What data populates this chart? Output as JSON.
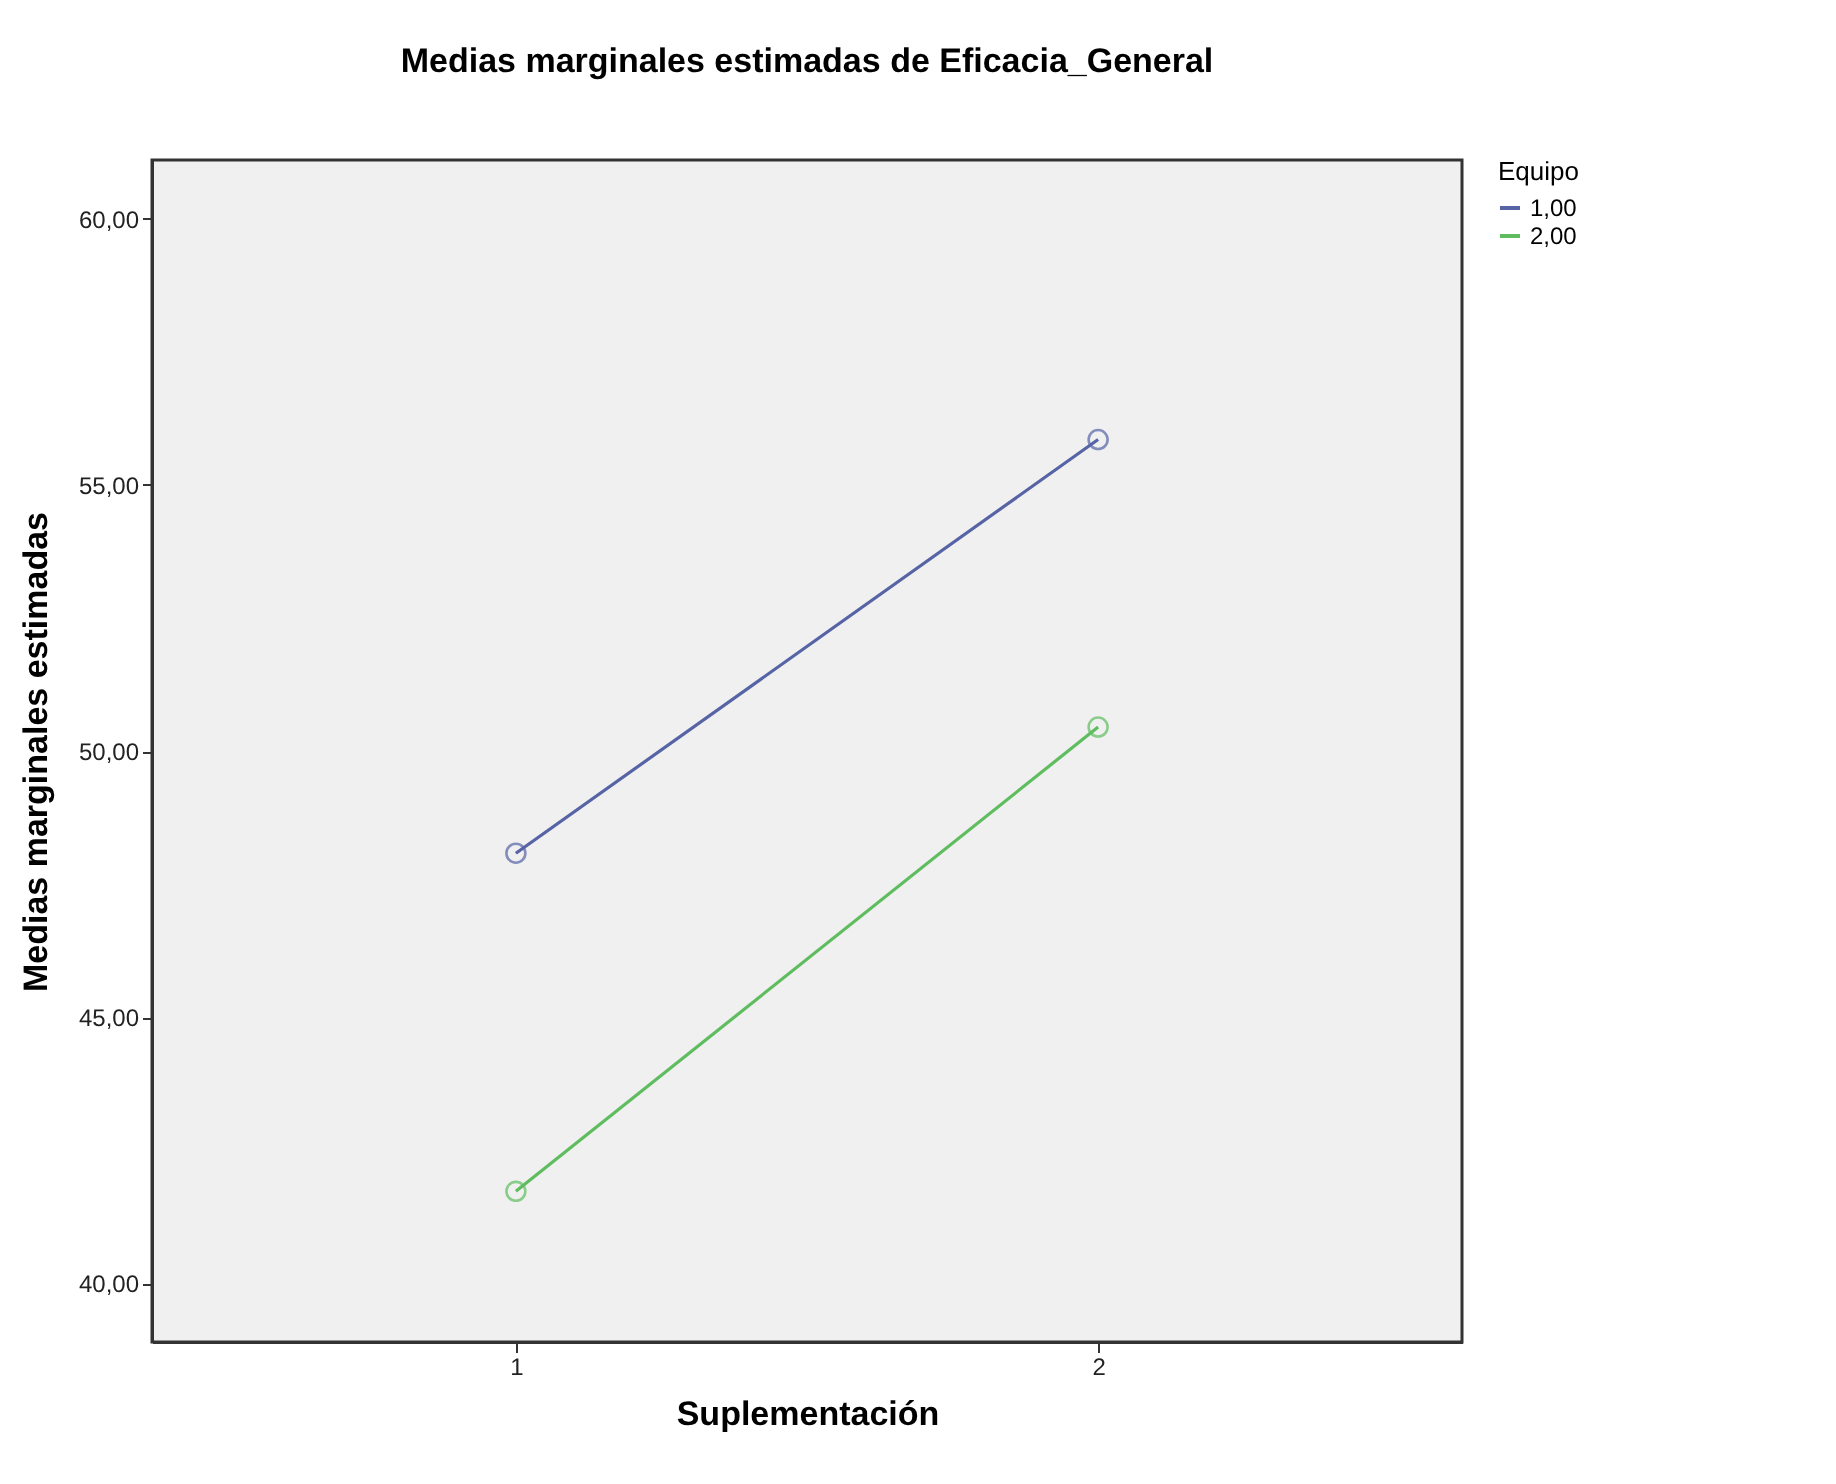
{
  "chart_data": {
    "type": "line",
    "title": "Medias marginales estimadas de Eficacia_General",
    "xlabel": "Suplementación",
    "ylabel": "Medias marginales estimadas",
    "legend_title": "Equipo",
    "categories": [
      "1",
      "2"
    ],
    "series": [
      {
        "name": "1,00",
        "color": "#5664a6",
        "values": [
          48.08,
          55.85
        ]
      },
      {
        "name": "2,00",
        "color": "#5fbd5f",
        "values": [
          41.73,
          50.45
        ]
      }
    ],
    "ylim": [
      38.9,
      61.1
    ],
    "yticks": [
      {
        "value": 40,
        "label": "40,00"
      },
      {
        "value": 45,
        "label": "45,00"
      },
      {
        "value": 50,
        "label": "50,00"
      },
      {
        "value": 55,
        "label": "55,00"
      },
      {
        "value": 60,
        "label": "60,00"
      }
    ],
    "grid": false,
    "legend": "right",
    "marker": "circle",
    "line_style": "solid"
  }
}
